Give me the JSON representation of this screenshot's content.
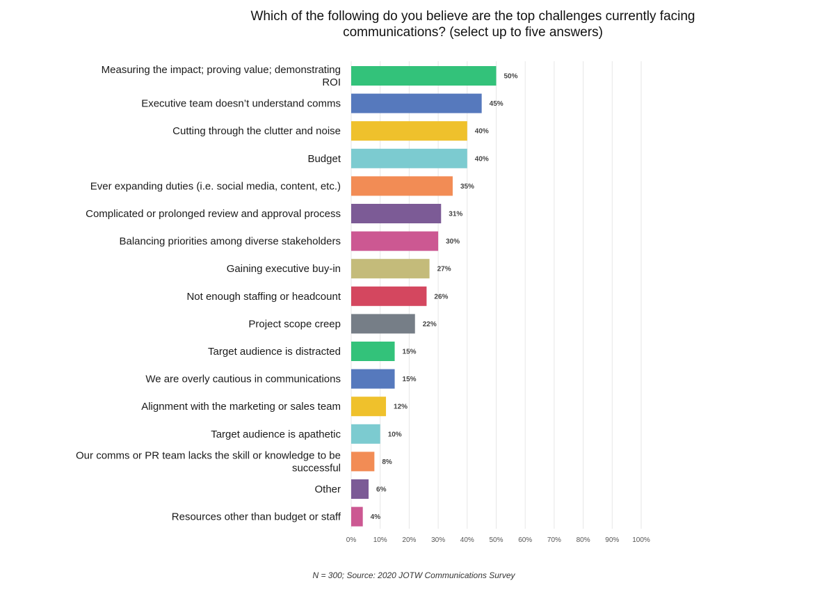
{
  "chart_data": {
    "type": "bar",
    "orientation": "horizontal",
    "title": "Which of the following do you believe are the top challenges currently facing communications? (select up to five answers)",
    "title_lines": [
      "Which of the following do you believe are the top challenges currently facing",
      "communications? (select up to five answers)"
    ],
    "xlabel": "",
    "ylabel": "",
    "xlim": [
      0,
      100
    ],
    "x_ticks": [
      "0%",
      "10%",
      "20%",
      "30%",
      "40%",
      "50%",
      "60%",
      "70%",
      "80%",
      "90%",
      "100%"
    ],
    "grid": "vertical",
    "categories": [
      "Measuring the impact; proving value; demonstrating ROI",
      "Executive team doesn’t understand comms",
      "Cutting through the clutter and noise",
      "Budget",
      "Ever expanding duties (i.e. social media, content, etc.)",
      "Complicated or prolonged review  and approval  process",
      "Balancing priorities among diverse stakeholders",
      "Gaining executive buy-in",
      "Not enough staffing or headcount",
      "Project scope creep",
      "Target audience is distracted",
      "We are overly  cautious in communications",
      "Alignment with the marketing or sales team",
      "Target audience is apathetic",
      "Our comms or PR team lacks the skill or knowledge to be successful",
      "Other",
      "Resources other than budget or staff"
    ],
    "category_lines": [
      [
        "Measuring the impact; proving value; demonstrating",
        "ROI"
      ],
      [
        "Executive team doesn’t understand comms"
      ],
      [
        "Cutting through the clutter and noise"
      ],
      [
        "Budget"
      ],
      [
        "Ever expanding duties (i.e. social media, content, etc.)"
      ],
      [
        "Complicated or prolonged review  and approval  process"
      ],
      [
        "Balancing priorities among diverse stakeholders"
      ],
      [
        "Gaining executive buy-in"
      ],
      [
        "Not enough staffing or headcount"
      ],
      [
        "Project scope creep"
      ],
      [
        "Target audience is distracted"
      ],
      [
        "We are overly  cautious in communications"
      ],
      [
        "Alignment with the marketing or sales team"
      ],
      [
        "Target audience is apathetic"
      ],
      [
        "Our comms or PR team lacks the skill or knowledge to be",
        "successful"
      ],
      [
        "Other"
      ],
      [
        "Resources other than budget or staff"
      ]
    ],
    "values": [
      50,
      45,
      40,
      40,
      35,
      31,
      30,
      27,
      26,
      22,
      15,
      15,
      12,
      10,
      8,
      6,
      4
    ],
    "value_labels": [
      "50%",
      "45%",
      "40%",
      "40%",
      "35%",
      "31%",
      "30%",
      "27%",
      "26%",
      "22%",
      "15%",
      "15%",
      "12%",
      "10%",
      "8%",
      "6%",
      "4%"
    ],
    "colors": [
      "#33c27a",
      "#5679bd",
      "#efc12c",
      "#7ccbd0",
      "#f28c55",
      "#7c5b96",
      "#cc5892",
      "#c4bb7a",
      "#d4475f",
      "#767e87",
      "#33c27a",
      "#5679bd",
      "#efc12c",
      "#7ccbd0",
      "#f28c55",
      "#7c5b96",
      "#cc5892"
    ]
  },
  "footnote": "N = 300; Source: 2020 JOTW Communications Survey"
}
